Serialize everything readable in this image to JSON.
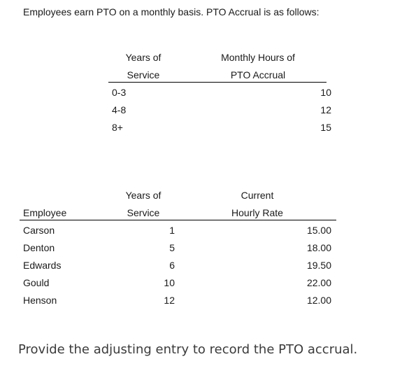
{
  "intro": "Employees earn PTO on a monthly basis.  PTO Accrual is as follows:",
  "accrual_table": {
    "col1_header": [
      "Years of",
      "Service"
    ],
    "col2_header": [
      "Monthly Hours of",
      "PTO Accrual"
    ],
    "rows": [
      {
        "years": "0-3",
        "hours": "10"
      },
      {
        "years": "4-8",
        "hours": "12"
      },
      {
        "years": "8+",
        "hours": "15"
      }
    ]
  },
  "employee_table": {
    "employee_header": "Employee",
    "years_header": [
      "Years of",
      "Service"
    ],
    "rate_header": [
      "Current",
      "Hourly Rate"
    ],
    "rows": [
      {
        "name": "Carson",
        "years": "1",
        "rate": "15.00"
      },
      {
        "name": "Denton",
        "years": "5",
        "rate": "18.00"
      },
      {
        "name": "Edwards",
        "years": "6",
        "rate": "19.50"
      },
      {
        "name": "Gould",
        "years": "10",
        "rate": "22.00"
      },
      {
        "name": "Henson",
        "years": "12",
        "rate": "12.00"
      }
    ]
  },
  "question": "Provide the adjusting entry to record the PTO accrual."
}
